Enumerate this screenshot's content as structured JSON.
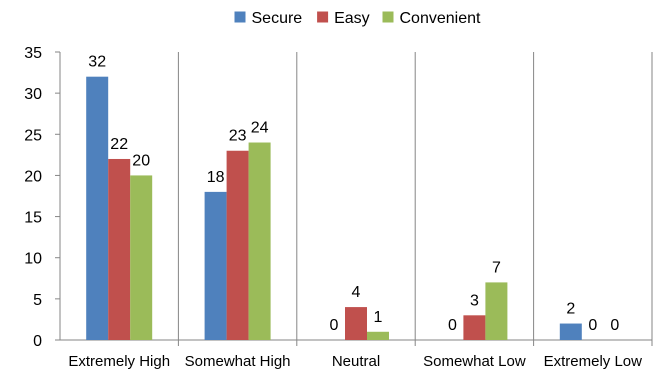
{
  "chart_data": {
    "type": "bar",
    "title": "",
    "xlabel": "",
    "ylabel": "",
    "categories": [
      "Extremely High",
      "Somewhat High",
      "Neutral",
      "Somewhat Low",
      "Extremely Low"
    ],
    "series": [
      {
        "name": "Secure",
        "values": [
          32,
          18,
          0,
          0,
          2
        ],
        "color": "#4f81bd"
      },
      {
        "name": "Easy",
        "values": [
          22,
          23,
          4,
          3,
          0
        ],
        "color": "#c0504d"
      },
      {
        "name": "Convenient",
        "values": [
          20,
          24,
          1,
          7,
          0
        ],
        "color": "#9bbb59"
      }
    ],
    "ylim": [
      0,
      35
    ],
    "yticks": [
      0,
      5,
      10,
      15,
      20,
      25,
      30,
      35
    ],
    "grid": false,
    "category_separators": true,
    "data_labels": true,
    "legend_position": "top-center"
  }
}
